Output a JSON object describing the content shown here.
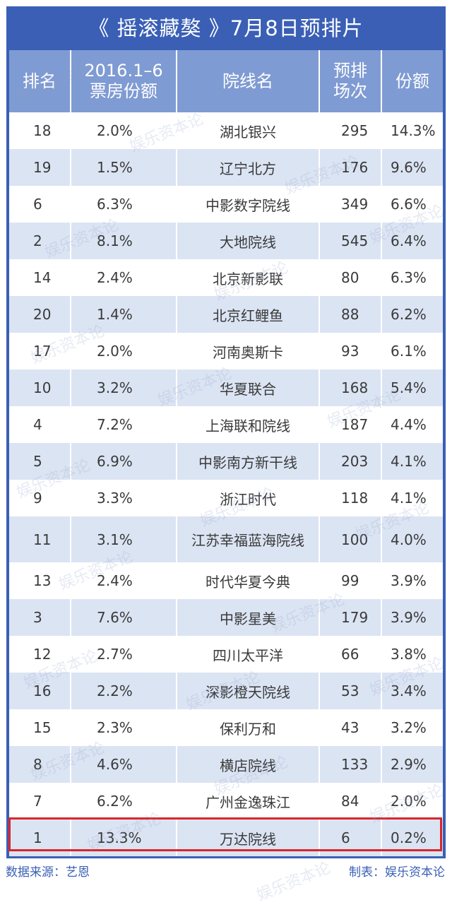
{
  "title": "《 摇滚藏獒 》7月8日预排片",
  "headers": {
    "rank": [
      "排名"
    ],
    "share2016": [
      "2016.1–6",
      "票房份额"
    ],
    "chain": [
      "院线名"
    ],
    "screenings": [
      "预排",
      "场次"
    ],
    "share": [
      "份额"
    ]
  },
  "rows": [
    {
      "rank": "18",
      "share2016": "2.0%",
      "chain": "湖北银兴",
      "screenings": "295",
      "share": "14.3%"
    },
    {
      "rank": "19",
      "share2016": "1.5%",
      "chain": "辽宁北方",
      "screenings": "176",
      "share": "9.6%"
    },
    {
      "rank": "6",
      "share2016": "6.3%",
      "chain": "中影数字院线",
      "screenings": "349",
      "share": "6.6%"
    },
    {
      "rank": "2",
      "share2016": "8.1%",
      "chain": "大地院线",
      "screenings": "545",
      "share": "6.4%"
    },
    {
      "rank": "14",
      "share2016": "2.4%",
      "chain": "北京新影联",
      "screenings": "80",
      "share": "6.3%"
    },
    {
      "rank": "20",
      "share2016": "1.4%",
      "chain": "北京红鲤鱼",
      "screenings": "88",
      "share": "6.2%"
    },
    {
      "rank": "17",
      "share2016": "2.0%",
      "chain": "河南奥斯卡",
      "screenings": "93",
      "share": "6.1%"
    },
    {
      "rank": "10",
      "share2016": "3.2%",
      "chain": "华夏联合",
      "screenings": "168",
      "share": "5.4%"
    },
    {
      "rank": "4",
      "share2016": "7.2%",
      "chain": "上海联和院线",
      "screenings": "187",
      "share": "4.4%"
    },
    {
      "rank": "5",
      "share2016": "6.9%",
      "chain": "中影南方新干线",
      "screenings": "203",
      "share": "4.1%"
    },
    {
      "rank": "9",
      "share2016": "3.3%",
      "chain": "浙江时代",
      "screenings": "118",
      "share": "4.1%"
    },
    {
      "rank": "11",
      "share2016": "3.1%",
      "chain": "江苏幸福蓝海院线",
      "screenings": "100",
      "share": "4.0%"
    },
    {
      "rank": "13",
      "share2016": "2.4%",
      "chain": "时代华夏今典",
      "screenings": "99",
      "share": "3.9%"
    },
    {
      "rank": "3",
      "share2016": "7.6%",
      "chain": "中影星美",
      "screenings": "179",
      "share": "3.9%"
    },
    {
      "rank": "12",
      "share2016": "2.7%",
      "chain": "四川太平洋",
      "screenings": "66",
      "share": "3.8%"
    },
    {
      "rank": "16",
      "share2016": "2.2%",
      "chain": "深影橙天院线",
      "screenings": "53",
      "share": "3.4%"
    },
    {
      "rank": "15",
      "share2016": "2.3%",
      "chain": "保利万和",
      "screenings": "43",
      "share": "3.2%"
    },
    {
      "rank": "8",
      "share2016": "4.6%",
      "chain": "横店院线",
      "screenings": "133",
      "share": "2.9%"
    },
    {
      "rank": "7",
      "share2016": "6.2%",
      "chain": "广州金逸珠江",
      "screenings": "84",
      "share": "2.0%"
    },
    {
      "rank": "1",
      "share2016": "13.3%",
      "chain": "万达院线",
      "screenings": "6",
      "share": "0.2%"
    }
  ],
  "footer": {
    "source": "数据来源：艺恩",
    "maker": "制表：娱乐资本论"
  },
  "watermark": "娱乐资本论",
  "colors": {
    "frame": "#3a5fb5",
    "header": "#7f9bd3",
    "alt_row": "#dbe4f3",
    "highlight": "#d9262c"
  }
}
